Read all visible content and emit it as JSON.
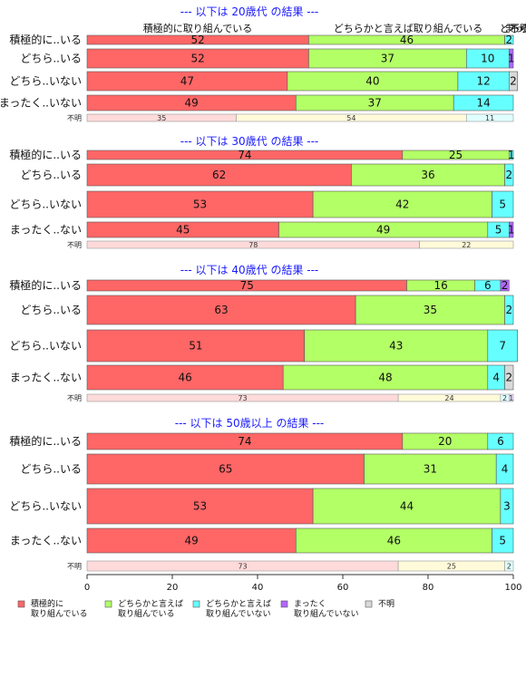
{
  "chart_data": {
    "type": "bar",
    "orientation": "horizontal-stacked",
    "xlim": [
      0,
      100
    ],
    "xticks": [
      "0",
      "20",
      "40",
      "60",
      "80",
      "100"
    ],
    "column_headers": [
      "積極的に取り組んでいる",
      "どちらかと言えば取り組んでいる",
      "どちらかと言えば取り組んでいない",
      "まったく取り組んでいない",
      "不明"
    ],
    "legend": {
      "position": "bottom",
      "entries": [
        {
          "label": [
            "積極的に",
            "取り組んでいる"
          ],
          "color": "#ff6666"
        },
        {
          "label": [
            "どちらかと言えば",
            "取り組んでいる"
          ],
          "color": "#b3ff66"
        },
        {
          "label": [
            "どちらかと言えば",
            "取り組んでいない"
          ],
          "color": "#66ffff"
        },
        {
          "label": [
            "まったく",
            "取り組んでいない"
          ],
          "color": "#b366ff"
        },
        {
          "label": [
            "不明"
          ],
          "color": "#d9d9d9"
        }
      ]
    },
    "na_colors": [
      "#ffdada",
      "#fffad9",
      "#e0ffff",
      "#eedcff",
      "#f0f0f0"
    ],
    "panels": [
      {
        "title": "--- 以下は 20歳代 の結果 ---",
        "rows": [
          {
            "label": "積極的に..いる",
            "values": [
              52,
              46,
              2,
              0,
              0
            ]
          },
          {
            "label": "どちら..いる",
            "values": [
              52,
              37,
              10,
              1,
              0
            ]
          },
          {
            "label": "どちら..いない",
            "values": [
              47,
              40,
              12,
              0,
              2
            ]
          },
          {
            "label": "まったく..いない",
            "values": [
              49,
              37,
              14,
              0,
              0
            ]
          }
        ],
        "na_row": {
          "label": "不明",
          "values": [
            35,
            54,
            11,
            0,
            0
          ]
        }
      },
      {
        "title": "--- 以下は 30歳代 の結果 ---",
        "rows": [
          {
            "label": "積極的に..いる",
            "values": [
              74,
              25,
              1,
              0,
              0
            ]
          },
          {
            "label": "どちら..いる",
            "values": [
              62,
              36,
              2,
              0,
              0
            ]
          },
          {
            "label": "どちら..いない",
            "values": [
              53,
              42,
              5,
              0,
              0
            ]
          },
          {
            "label": "まったく..ない",
            "values": [
              45,
              49,
              5,
              1,
              0
            ]
          }
        ],
        "na_row": {
          "label": "不明",
          "values": [
            78,
            22,
            0,
            0,
            0
          ]
        }
      },
      {
        "title": "--- 以下は 40歳代 の結果 ---",
        "rows": [
          {
            "label": "積極的に..いる",
            "values": [
              75,
              16,
              6,
              2,
              0
            ]
          },
          {
            "label": "どちら..いる",
            "values": [
              63,
              35,
              2,
              0,
              0
            ]
          },
          {
            "label": "どちら..いない",
            "values": [
              51,
              43,
              7,
              0,
              0
            ]
          },
          {
            "label": "まったく..ない",
            "values": [
              46,
              48,
              4,
              0,
              2
            ]
          }
        ],
        "na_row": {
          "label": "不明",
          "values": [
            73,
            24,
            2,
            1,
            0
          ]
        }
      },
      {
        "title": "--- 以下は 50歳以上 の結果 ---",
        "rows": [
          {
            "label": "積極的に..いる",
            "values": [
              74,
              20,
              6,
              0,
              0
            ]
          },
          {
            "label": "どちら..いる",
            "values": [
              65,
              31,
              4,
              0,
              0
            ]
          },
          {
            "label": "どちら..いない",
            "values": [
              53,
              44,
              3,
              0,
              0
            ]
          },
          {
            "label": "まったく..ない",
            "values": [
              49,
              46,
              5,
              0,
              0
            ]
          }
        ],
        "na_row": {
          "label": "不明",
          "values": [
            73,
            25,
            2,
            0,
            0
          ]
        }
      }
    ]
  }
}
